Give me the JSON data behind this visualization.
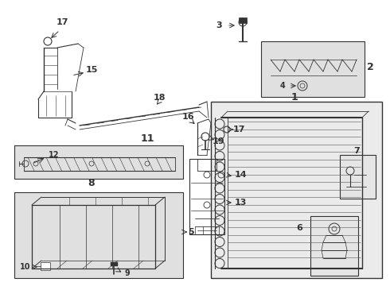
{
  "bg_color": "#ffffff",
  "line_color": "#333333",
  "fill_color": "#d8d8d8",
  "label_fontsize": 8,
  "small_fontsize": 7,
  "lw": 0.7,
  "fig_w": 4.9,
  "fig_h": 3.6,
  "dpi": 100
}
